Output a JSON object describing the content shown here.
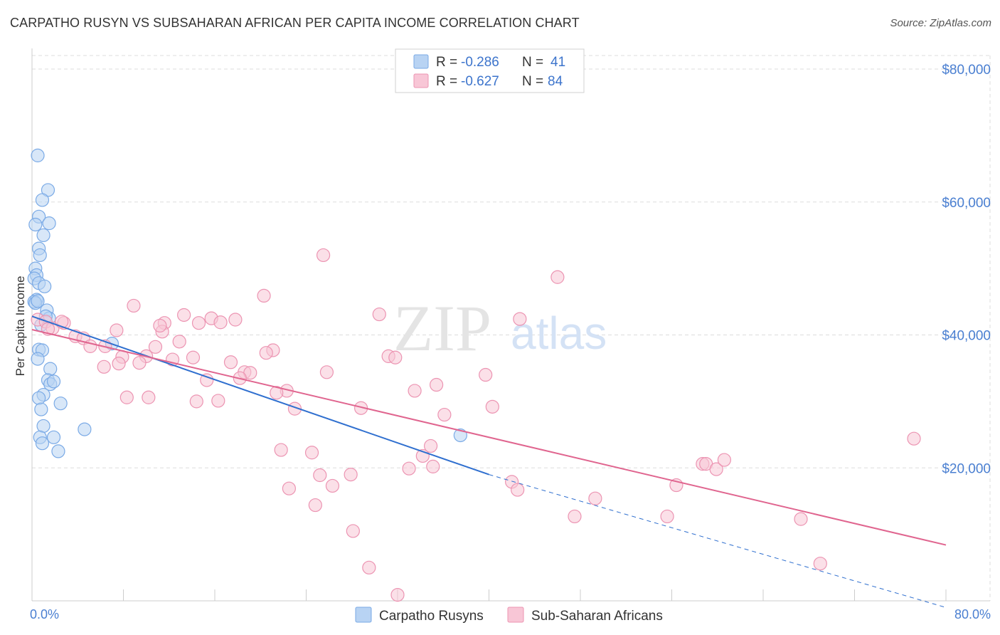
{
  "title": "CARPATHO RUSYN VS SUBSAHARAN AFRICAN PER CAPITA INCOME CORRELATION CHART",
  "source": "Source: ZipAtlas.com",
  "watermark": {
    "zip": "ZIP",
    "atlas": "atlas"
  },
  "colors": {
    "blue_fill": "#b8d3f3",
    "blue_stroke": "#7aaae6",
    "blue_line": "#2f6fcf",
    "pink_fill": "#f8c6d6",
    "pink_stroke": "#ec94b2",
    "pink_line": "#e0658f",
    "grid": "#dddddd",
    "tick_text": "#4a7fd1"
  },
  "legend": {
    "rows": [
      {
        "r_label": "R =",
        "r_value": "-0.286",
        "n_label": "N =",
        "n_value": "41"
      },
      {
        "r_label": "R =",
        "r_value": "-0.627",
        "n_label": "N =",
        "n_value": "84"
      }
    ]
  },
  "chart_data": {
    "type": "scatter",
    "title": "CARPATHO RUSYN VS SUBSAHARAN AFRICAN PER CAPITA INCOME CORRELATION CHART",
    "xlabel": "",
    "ylabel": "Per Capita Income",
    "xlim": [
      0,
      80
    ],
    "ylim": [
      0,
      80000
    ],
    "x_tick_labels": [
      "0.0%",
      "80.0%"
    ],
    "y_ticks": [
      20000,
      40000,
      60000,
      80000
    ],
    "y_tick_labels": [
      "$20,000",
      "$40,000",
      "$60,000",
      "$80,000"
    ],
    "grid": true,
    "legend_position": "top-center",
    "series": [
      {
        "name": "Carpatho Rusyns",
        "color": "#7aaae6",
        "r": -0.286,
        "n": 41,
        "trend": {
          "x_start": 0,
          "y_start": 42800,
          "x_end": 40,
          "y_end": 19000,
          "dashed_to_x": 80,
          "dashed_to_y": -1000
        },
        "points": [
          [
            0.5,
            67000
          ],
          [
            1.4,
            61800
          ],
          [
            0.9,
            60300
          ],
          [
            0.6,
            57800
          ],
          [
            1.5,
            56800
          ],
          [
            0.3,
            56600
          ],
          [
            1.0,
            55000
          ],
          [
            0.6,
            53000
          ],
          [
            0.7,
            52000
          ],
          [
            0.3,
            50000
          ],
          [
            0.4,
            49000
          ],
          [
            0.2,
            48500
          ],
          [
            0.6,
            47800
          ],
          [
            1.1,
            47300
          ],
          [
            0.4,
            45300
          ],
          [
            0.2,
            45000
          ],
          [
            0.3,
            44800
          ],
          [
            1.3,
            43700
          ],
          [
            1.5,
            42500
          ],
          [
            7.0,
            38700
          ],
          [
            0.6,
            37800
          ],
          [
            0.9,
            37700
          ],
          [
            0.5,
            36400
          ],
          [
            1.6,
            34900
          ],
          [
            1.4,
            33200
          ],
          [
            1.6,
            32600
          ],
          [
            1.0,
            31000
          ],
          [
            0.6,
            30500
          ],
          [
            2.5,
            29700
          ],
          [
            0.8,
            28800
          ],
          [
            1.0,
            26300
          ],
          [
            4.6,
            25800
          ],
          [
            1.9,
            24600
          ],
          [
            0.7,
            24600
          ],
          [
            37.5,
            24900
          ],
          [
            0.9,
            23700
          ],
          [
            2.3,
            22500
          ],
          [
            0.5,
            45100
          ],
          [
            1.2,
            42800
          ],
          [
            0.8,
            41500
          ],
          [
            1.9,
            33000
          ]
        ]
      },
      {
        "name": "Sub-Saharan Africans",
        "color": "#ec94b2",
        "r": -0.627,
        "n": 84,
        "trend": {
          "x_start": 0,
          "y_start": 40800,
          "x_end": 80,
          "y_end": 8400
        },
        "points": [
          [
            25.5,
            52000
          ],
          [
            46.0,
            48700
          ],
          [
            20.3,
            45900
          ],
          [
            8.9,
            44400
          ],
          [
            30.4,
            43100
          ],
          [
            13.3,
            43000
          ],
          [
            42.7,
            42400
          ],
          [
            15.7,
            42500
          ],
          [
            17.8,
            42300
          ],
          [
            16.5,
            41900
          ],
          [
            11.6,
            41800
          ],
          [
            14.6,
            41800
          ],
          [
            0.5,
            42300
          ],
          [
            1.2,
            42000
          ],
          [
            2.8,
            41800
          ],
          [
            1.8,
            41000
          ],
          [
            7.4,
            40700
          ],
          [
            11.4,
            40500
          ],
          [
            3.8,
            39800
          ],
          [
            4.5,
            39500
          ],
          [
            12.9,
            39000
          ],
          [
            5.1,
            38300
          ],
          [
            6.4,
            38300
          ],
          [
            10.8,
            38200
          ],
          [
            21.1,
            37700
          ],
          [
            20.5,
            37300
          ],
          [
            31.2,
            36800
          ],
          [
            31.8,
            36600
          ],
          [
            7.9,
            36700
          ],
          [
            12.3,
            36300
          ],
          [
            14.1,
            36600
          ],
          [
            10.0,
            36800
          ],
          [
            9.4,
            35800
          ],
          [
            17.4,
            35900
          ],
          [
            7.6,
            35700
          ],
          [
            6.3,
            35200
          ],
          [
            18.6,
            34400
          ],
          [
            25.8,
            34400
          ],
          [
            19.1,
            34300
          ],
          [
            39.7,
            34000
          ],
          [
            15.3,
            33200
          ],
          [
            18.2,
            33500
          ],
          [
            35.4,
            32500
          ],
          [
            33.5,
            31600
          ],
          [
            22.3,
            31600
          ],
          [
            21.4,
            31300
          ],
          [
            8.3,
            30600
          ],
          [
            10.2,
            30600
          ],
          [
            14.4,
            30000
          ],
          [
            16.3,
            30100
          ],
          [
            23.0,
            28900
          ],
          [
            28.8,
            29000
          ],
          [
            40.3,
            29200
          ],
          [
            36.1,
            28000
          ],
          [
            34.9,
            23300
          ],
          [
            77.2,
            24400
          ],
          [
            21.8,
            22700
          ],
          [
            24.5,
            22300
          ],
          [
            34.2,
            21800
          ],
          [
            58.7,
            20600
          ],
          [
            59.0,
            20600
          ],
          [
            59.9,
            19800
          ],
          [
            33.0,
            19900
          ],
          [
            35.1,
            20200
          ],
          [
            27.9,
            19000
          ],
          [
            25.2,
            18900
          ],
          [
            42.0,
            17900
          ],
          [
            42.5,
            16700
          ],
          [
            22.5,
            16900
          ],
          [
            26.3,
            17300
          ],
          [
            49.3,
            15400
          ],
          [
            56.4,
            17400
          ],
          [
            24.8,
            14400
          ],
          [
            47.5,
            12700
          ],
          [
            55.6,
            12700
          ],
          [
            67.3,
            12300
          ],
          [
            28.1,
            10500
          ],
          [
            29.5,
            5000
          ],
          [
            69.0,
            5600
          ],
          [
            32.0,
            900
          ],
          [
            1.4,
            40900
          ],
          [
            2.6,
            42000
          ],
          [
            60.6,
            21200
          ],
          [
            11.2,
            41400
          ]
        ]
      }
    ]
  }
}
